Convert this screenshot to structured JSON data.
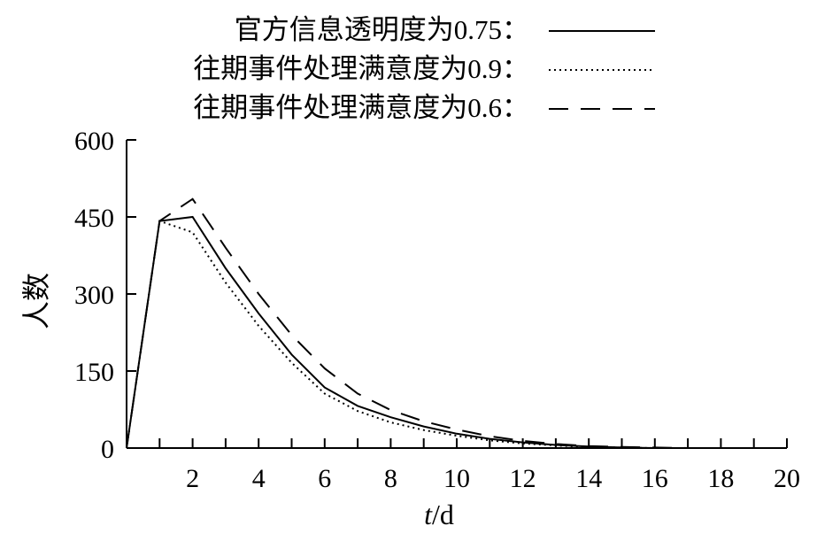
{
  "chart_data": {
    "type": "line",
    "title": "",
    "xlabel_italic": "t",
    "xlabel_unit": "/d",
    "ylabel": "人数",
    "xlim": [
      0,
      20
    ],
    "ylim": [
      0,
      600
    ],
    "x_ticks": [
      2,
      4,
      6,
      8,
      10,
      12,
      14,
      16,
      18,
      20
    ],
    "x_minor_ticks": [
      1,
      3,
      5,
      7,
      9,
      11,
      13,
      15,
      17,
      19
    ],
    "y_ticks": [
      0,
      150,
      300,
      450,
      600
    ],
    "grid": false,
    "legend_position": "top",
    "series": [
      {
        "name": "官方信息透明度为0.75：",
        "style": "solid",
        "x": [
          0,
          1,
          2,
          3,
          4,
          5,
          6,
          7,
          8,
          9,
          10,
          11,
          12,
          13,
          14,
          15,
          16,
          17,
          18,
          19,
          20
        ],
        "y": [
          0,
          442,
          450,
          350,
          262,
          182,
          118,
          82,
          60,
          42,
          28,
          18,
          11,
          6,
          3,
          1,
          0,
          0,
          0,
          0,
          0
        ]
      },
      {
        "name": "往期事件处理满意度为0.9：",
        "style": "dotted",
        "x": [
          0,
          1,
          2,
          3,
          4,
          5,
          6,
          7,
          8,
          9,
          10,
          11,
          12,
          13,
          14,
          15,
          16,
          17,
          18,
          19,
          20
        ],
        "y": [
          0,
          442,
          420,
          322,
          238,
          166,
          106,
          72,
          50,
          35,
          24,
          15,
          9,
          5,
          2,
          1,
          0,
          0,
          0,
          0,
          0
        ]
      },
      {
        "name": "往期事件处理满意度为0.6：",
        "style": "dashed",
        "x": [
          0,
          1,
          2,
          3,
          4,
          5,
          6,
          7,
          8,
          9,
          10,
          11,
          12,
          13,
          14,
          15,
          16,
          17,
          18,
          19,
          20
        ],
        "y": [
          0,
          442,
          485,
          390,
          300,
          220,
          155,
          106,
          74,
          52,
          36,
          23,
          14,
          8,
          4,
          2,
          1,
          0,
          0,
          0,
          0
        ]
      }
    ]
  }
}
